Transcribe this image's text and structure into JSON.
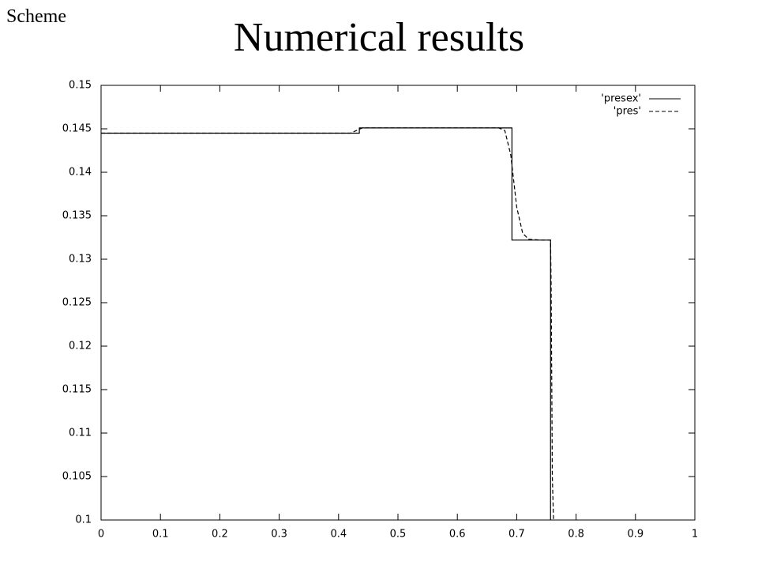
{
  "slide": {
    "label": "Scheme"
  },
  "chart_data": {
    "type": "line",
    "title": "Numerical results",
    "xlim": [
      0,
      1
    ],
    "xticks": [
      0,
      0.1,
      0.2,
      0.3,
      0.4,
      0.5,
      0.6,
      0.7,
      0.8,
      0.9,
      1
    ],
    "ylim": [
      0.1,
      0.15
    ],
    "yticks": [
      0.1,
      0.105,
      0.11,
      0.115,
      0.12,
      0.125,
      0.13,
      0.135,
      0.14,
      0.145,
      0.15
    ],
    "legend": "top-right",
    "series": [
      {
        "name": "'presex'",
        "color": "#000000",
        "dash": "solid",
        "x": [
          0,
          0.435,
          0.435,
          0.692,
          0.692,
          0.757,
          0.757
        ],
        "values": [
          0.1445,
          0.1445,
          0.1451,
          0.1451,
          0.1322,
          0.1322,
          0.1
        ]
      },
      {
        "name": "'pres'",
        "color": "#000000",
        "dash": "dashed",
        "x": [
          0,
          0.42,
          0.44,
          0.67,
          0.68,
          0.69,
          0.7,
          0.71,
          0.72,
          0.74,
          0.757,
          0.758,
          0.76,
          0.762
        ],
        "values": [
          0.1445,
          0.1445,
          0.1451,
          0.1451,
          0.1448,
          0.142,
          0.136,
          0.133,
          0.1323,
          0.1322,
          0.1322,
          0.127,
          0.105,
          0.1
        ]
      }
    ]
  }
}
